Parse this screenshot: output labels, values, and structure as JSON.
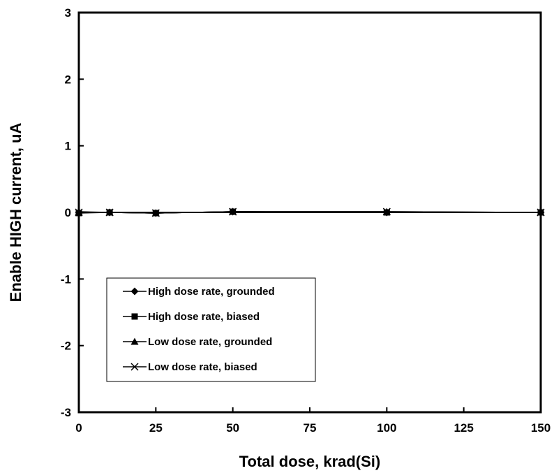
{
  "chart_data": {
    "type": "line",
    "title": "",
    "xlabel": "Total dose, krad(Si)",
    "ylabel": "Enable HIGH current, uA",
    "xlim": [
      0,
      150
    ],
    "ylim": [
      -3,
      3
    ],
    "xticks": [
      0,
      25,
      50,
      75,
      100,
      125,
      150
    ],
    "yticks": [
      -3,
      -2,
      -1,
      0,
      1,
      2,
      3
    ],
    "grid": false,
    "legend_position": "lower-left",
    "series": [
      {
        "name": "High dose rate, grounded",
        "marker": "diamond",
        "x": [
          0,
          10,
          25,
          50,
          100,
          150
        ],
        "y": [
          0.0,
          0.0,
          -0.01,
          0.01,
          0.0,
          0.0
        ]
      },
      {
        "name": "High dose rate, biased",
        "marker": "square",
        "x": [
          0,
          10,
          25,
          50,
          100,
          150
        ],
        "y": [
          -0.01,
          0.0,
          -0.01,
          0.01,
          0.0,
          0.0
        ]
      },
      {
        "name": "Low dose rate, grounded",
        "marker": "triangle",
        "x": [
          0,
          10,
          25,
          50,
          100,
          150
        ],
        "y": [
          0.01,
          0.0,
          -0.01,
          0.01,
          0.01,
          0.0
        ]
      },
      {
        "name": "Low dose rate, biased",
        "marker": "x",
        "x": [
          0,
          10,
          25,
          50,
          100,
          150
        ],
        "y": [
          0.0,
          0.0,
          -0.01,
          0.01,
          0.01,
          0.0
        ]
      }
    ]
  }
}
